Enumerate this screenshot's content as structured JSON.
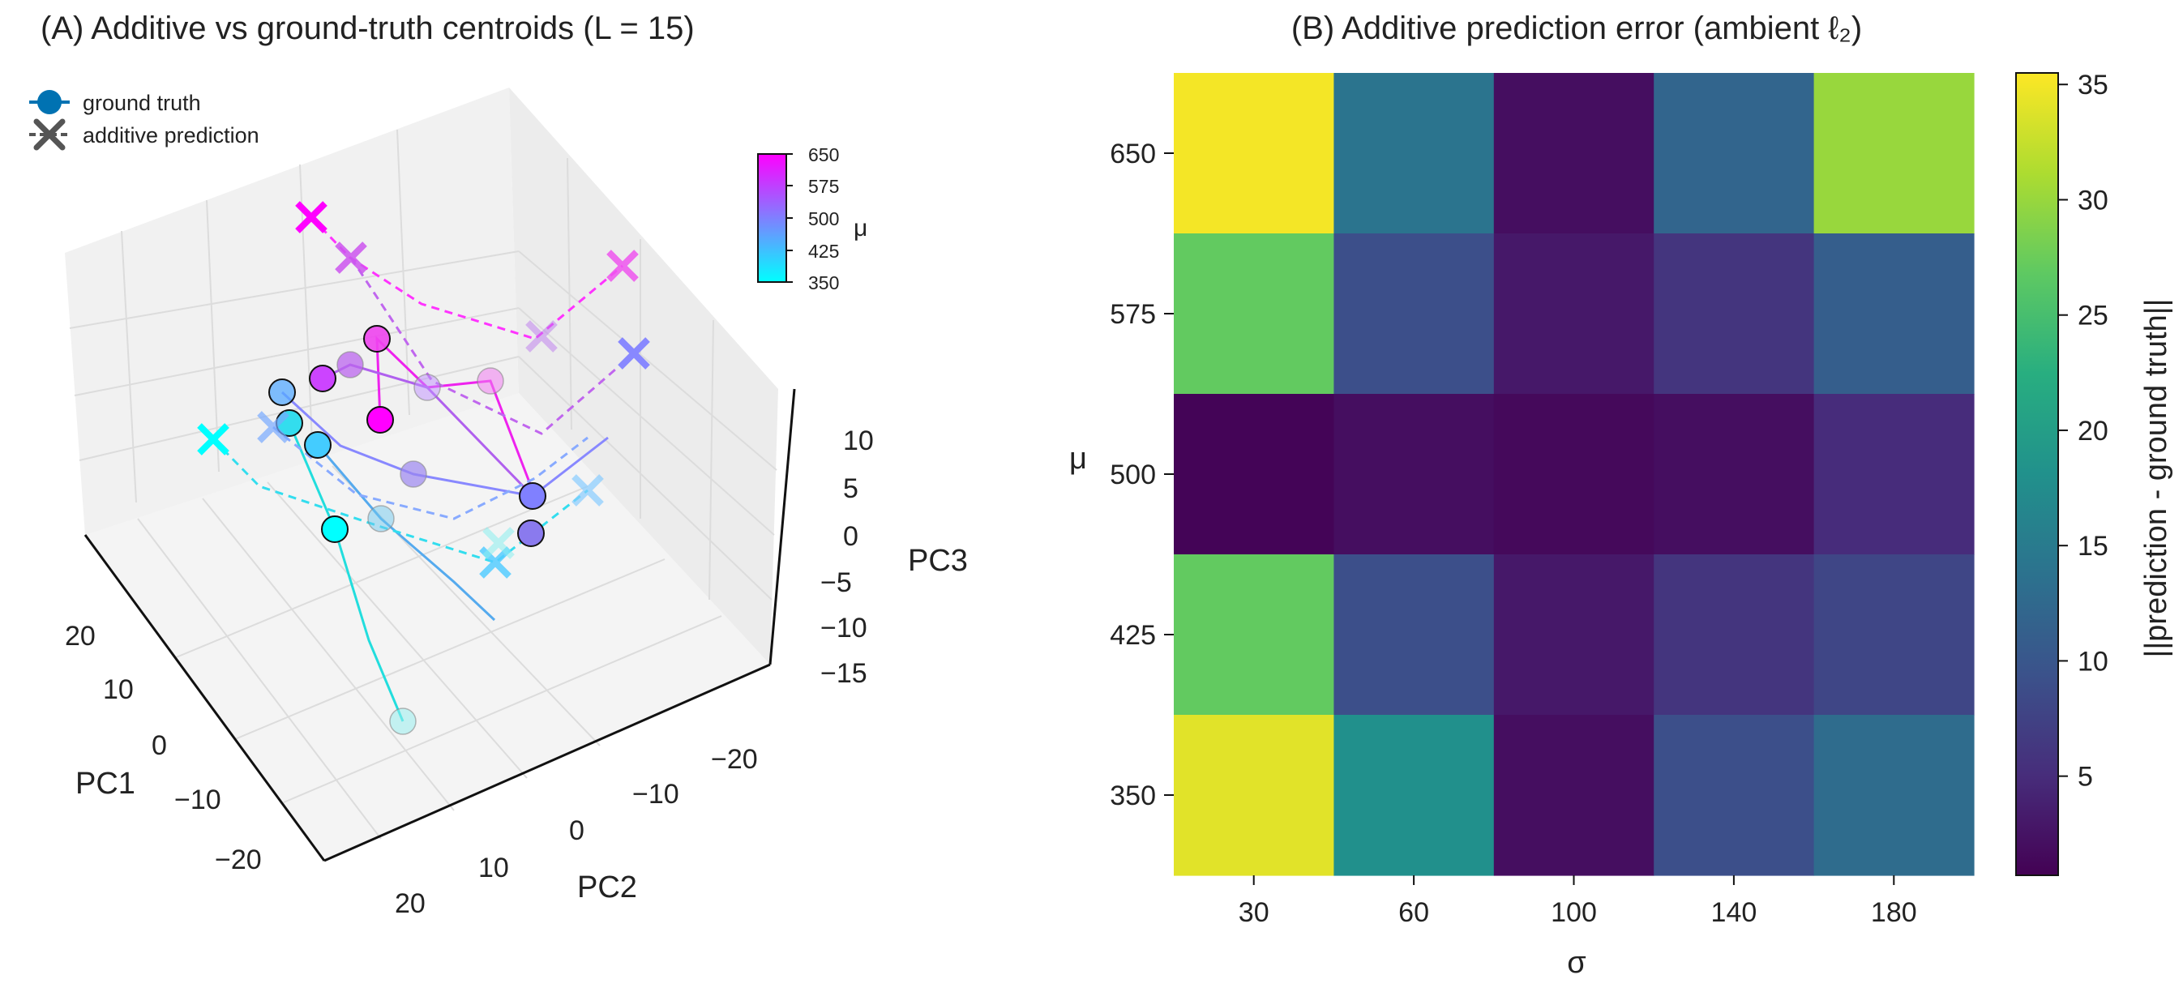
{
  "chart_data": [
    {
      "type": "scatter",
      "projection": "3d",
      "title": "(A) Additive vs ground-truth centroids (L = 15)",
      "xlabel": "PC1",
      "ylabel": "PC2",
      "zlabel": "PC3",
      "x_ticks": [
        "20",
        "10",
        "0",
        "−10",
        "−20"
      ],
      "y_ticks": [
        "20",
        "10",
        "0",
        "−10",
        "−20"
      ],
      "z_ticks": [
        "10",
        "5",
        "0",
        "−5",
        "−10",
        "−15"
      ],
      "grid": true,
      "legend": {
        "position": "top-left",
        "entries": [
          {
            "label": "ground truth",
            "marker": "circle",
            "style": "solid",
            "color": "#0072b2"
          },
          {
            "label": "additive prediction",
            "marker": "x",
            "style": "dashed",
            "color": "#555555"
          }
        ]
      },
      "colorbar": {
        "label": "μ",
        "ticks": [
          "650",
          "575",
          "500",
          "425",
          "350"
        ],
        "range": [
          350,
          650
        ],
        "colors": [
          "#00ffff",
          "#ff00ff"
        ],
        "position": "top-right"
      },
      "series": [
        {
          "name": "ground truth",
          "points": [
            {
              "mu": 650,
              "color": "#ff00ff"
            },
            {
              "mu": 650,
              "color": "#ee44ee"
            },
            {
              "mu": 650,
              "color": "#f07cf0"
            },
            {
              "mu": 575,
              "color": "#cc44ff"
            },
            {
              "mu": 575,
              "color": "#bb66ee"
            },
            {
              "mu": 575,
              "color": "#c090ff"
            },
            {
              "mu": 500,
              "color": "#8080ff"
            },
            {
              "mu": 500,
              "color": "#8a7aee"
            },
            {
              "mu": 500,
              "color": "#9b86f0"
            },
            {
              "mu": 425,
              "color": "#44ccff"
            },
            {
              "mu": 425,
              "color": "#55aaff"
            },
            {
              "mu": 425,
              "color": "#70c8ee"
            },
            {
              "mu": 350,
              "color": "#00ffff"
            },
            {
              "mu": 350,
              "color": "#33ddee"
            },
            {
              "mu": 350,
              "color": "#99eeee"
            }
          ]
        },
        {
          "name": "additive prediction",
          "points": [
            {
              "mu": 650,
              "color": "#ff00ff"
            },
            {
              "mu": 650,
              "color": "#ee55ee"
            },
            {
              "mu": 575,
              "color": "#cc55ee"
            },
            {
              "mu": 575,
              "color": "#bb77ee"
            },
            {
              "mu": 500,
              "color": "#8888ff"
            },
            {
              "mu": 500,
              "color": "#77aaff"
            },
            {
              "mu": 425,
              "color": "#55ccff"
            },
            {
              "mu": 425,
              "color": "#88ccff"
            },
            {
              "mu": 350,
              "color": "#00ffff"
            },
            {
              "mu": 350,
              "color": "#88eeee"
            }
          ]
        }
      ]
    },
    {
      "type": "heatmap",
      "title": "(B) Additive prediction error (ambient ℓ₂)",
      "xlabel": "σ",
      "ylabel": "μ",
      "x": [
        "30",
        "60",
        "100",
        "140",
        "180"
      ],
      "y": [
        "650",
        "575",
        "500",
        "425",
        "350"
      ],
      "values": [
        [
          35,
          14,
          2,
          12,
          30
        ],
        [
          27,
          9,
          3,
          6,
          11
        ],
        [
          1,
          2,
          1.5,
          2,
          5
        ],
        [
          27,
          9,
          3,
          6,
          8
        ],
        [
          34,
          18,
          2,
          9,
          13
        ]
      ],
      "colormap": "viridis",
      "colorbar": {
        "label": "||prediction - ground truth||",
        "ticks": [
          "35",
          "30",
          "25",
          "20",
          "15",
          "10",
          "5"
        ],
        "range": [
          0.7,
          35.5
        ]
      }
    }
  ]
}
